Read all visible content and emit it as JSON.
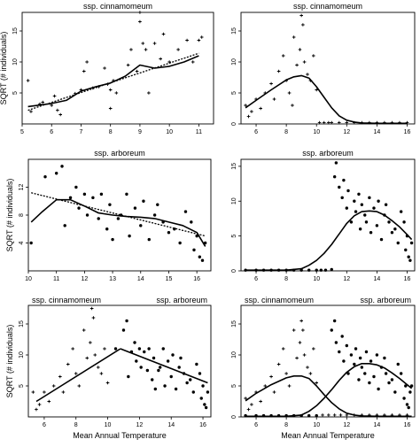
{
  "figure": {
    "xlabel_shared": "Mean Annual Temperature",
    "ylabel_shared": "SQRT (# individuals)"
  },
  "chart_data": [
    {
      "type": "scatter",
      "title": "ssp. cinnamomeum",
      "ylabel": "SQRT (# individuals)",
      "xlabel": "",
      "xlim": [
        5,
        11.5
      ],
      "ylim": [
        0,
        18
      ],
      "xticks": [
        "5",
        "6",
        "7",
        "8",
        "9",
        "10",
        "11"
      ],
      "yticks": [
        "5",
        "10",
        "15"
      ],
      "series": [
        {
          "kind": "points",
          "marker": "plus",
          "x": [
            5.2,
            5.3,
            5.6,
            5.7,
            6.0,
            6.1,
            6.2,
            6.3,
            6.8,
            7.0,
            7.1,
            7.2,
            7.4,
            7.6,
            7.8,
            7.9,
            8.0,
            8.0,
            8.1,
            8.2,
            8.6,
            8.7,
            8.9,
            9.0,
            9.0,
            9.1,
            9.2,
            9.3,
            9.5,
            9.7,
            9.8,
            10.0,
            10.3,
            10.6,
            10.8,
            11.0,
            11.1
          ],
          "y": [
            7.0,
            2.0,
            3.2,
            3.5,
            3.0,
            4.5,
            2.2,
            1.5,
            4.9,
            5.5,
            8.5,
            10.0,
            5.8,
            6.0,
            9.0,
            6.4,
            2.5,
            5.5,
            7.0,
            5.0,
            9.5,
            12.0,
            8.5,
            16.5,
            18.0,
            13.0,
            12.0,
            5.0,
            13.0,
            10.5,
            14.5,
            10.0,
            12.0,
            13.5,
            10.0,
            13.5,
            14.0
          ]
        },
        {
          "kind": "line",
          "style": "solid",
          "x": [
            5.2,
            6.0,
            6.5,
            7.0,
            7.5,
            8.0,
            8.5,
            9.0,
            9.5,
            10.0,
            10.5,
            11.0
          ],
          "y": [
            2.8,
            3.3,
            3.8,
            5.3,
            6.0,
            6.6,
            7.7,
            9.5,
            9.0,
            9.3,
            10.0,
            11.0
          ]
        },
        {
          "kind": "line",
          "style": "dotted",
          "x": [
            5.2,
            11.0
          ],
          "y": [
            2.2,
            11.4
          ]
        }
      ]
    },
    {
      "type": "scatter",
      "title": "ssp. cinnamomeum",
      "xlabel": "",
      "ylabel": "",
      "xlim": [
        5,
        16.5
      ],
      "ylim": [
        0,
        18
      ],
      "xticks": [
        "6",
        "8",
        "10",
        "12",
        "14",
        "16"
      ],
      "yticks": [
        "0",
        "5",
        "10",
        "15"
      ],
      "series": [
        {
          "kind": "points",
          "marker": "plus",
          "x": [
            5.3,
            5.5,
            5.7,
            6.0,
            6.3,
            6.6,
            7.0,
            7.2,
            7.5,
            7.8,
            8.0,
            8.2,
            8.4,
            8.5,
            8.7,
            8.9,
            9.0,
            9.1,
            9.2,
            9.4,
            9.6,
            9.8,
            10.0,
            10.2,
            10.5,
            10.8,
            11.0,
            11.5,
            12.0,
            12.5,
            13.0,
            13.5,
            14.0,
            14.5,
            15.0,
            15.5,
            16.0
          ],
          "y": [
            3.0,
            1.2,
            2.0,
            4.0,
            2.5,
            5.0,
            6.5,
            4.0,
            8.5,
            11.0,
            7.0,
            5.0,
            3.0,
            14.0,
            9.5,
            12.0,
            17.5,
            16.0,
            10.0,
            8.0,
            7.0,
            11.0,
            5.5,
            0.2,
            0.2,
            0.2,
            0.2,
            0.2,
            0.2,
            0.2,
            0.2,
            0.2,
            0.2,
            0.2,
            0.2,
            0.2,
            0.2
          ]
        },
        {
          "kind": "line",
          "style": "solid",
          "x": [
            5.3,
            6.0,
            7.0,
            8.0,
            8.5,
            9.0,
            9.5,
            10.0,
            10.5,
            11.0,
            11.5,
            12.0,
            12.5,
            13.0,
            14.0,
            15.0,
            16.0
          ],
          "y": [
            2.6,
            3.8,
            5.5,
            7.1,
            7.6,
            7.8,
            7.4,
            6.0,
            4.3,
            2.6,
            1.3,
            0.6,
            0.3,
            0.15,
            0.1,
            0.1,
            0.1
          ]
        }
      ]
    },
    {
      "type": "scatter",
      "title": "ssp. arboreum",
      "ylabel": "SQRT (# individuals)",
      "xlabel": "",
      "xlim": [
        10,
        16.5
      ],
      "ylim": [
        0,
        16
      ],
      "xticks": [
        "10",
        "11",
        "12",
        "13",
        "14",
        "15",
        "16"
      ],
      "yticks": [
        "4",
        "8",
        "12"
      ],
      "series": [
        {
          "kind": "points",
          "marker": "dot",
          "x": [
            10.1,
            10.6,
            11.0,
            11.2,
            11.3,
            11.5,
            11.7,
            11.8,
            12.0,
            12.1,
            12.3,
            12.5,
            12.6,
            12.8,
            12.9,
            13.0,
            13.2,
            13.3,
            13.5,
            13.6,
            13.8,
            14.0,
            14.1,
            14.3,
            14.5,
            14.6,
            14.8,
            15.0,
            15.2,
            15.4,
            15.6,
            15.8,
            15.9,
            16.0,
            16.1,
            16.2,
            16.3
          ],
          "y": [
            4.0,
            13.5,
            14.0,
            15.0,
            6.5,
            10.5,
            12.0,
            9.0,
            11.0,
            8.0,
            10.5,
            7.5,
            11.0,
            6.0,
            9.5,
            4.5,
            7.5,
            8.0,
            11.0,
            5.0,
            9.0,
            6.5,
            10.0,
            4.5,
            8.0,
            9.5,
            7.0,
            5.5,
            6.0,
            4.0,
            8.5,
            7.0,
            3.0,
            5.0,
            2.0,
            1.5,
            4.0
          ]
        },
        {
          "kind": "line",
          "style": "solid",
          "x": [
            10.1,
            10.5,
            11.0,
            11.5,
            12.0,
            12.5,
            13.0,
            13.5,
            14.0,
            14.5,
            15.0,
            15.5,
            16.0,
            16.3
          ],
          "y": [
            7.0,
            8.5,
            10.2,
            10.2,
            9.3,
            8.3,
            8.0,
            7.8,
            7.7,
            7.5,
            7.0,
            6.5,
            5.5,
            3.5
          ]
        },
        {
          "kind": "line",
          "style": "dotted",
          "x": [
            10.1,
            16.3
          ],
          "y": [
            11.2,
            5.0
          ]
        }
      ]
    },
    {
      "type": "scatter",
      "title": "ssp. arboreum",
      "xlabel": "",
      "ylabel": "",
      "xlim": [
        5,
        16.5
      ],
      "ylim": [
        0,
        16
      ],
      "xticks": [
        "6",
        "8",
        "10",
        "12",
        "14",
        "16"
      ],
      "yticks": [
        "0",
        "5",
        "10",
        "15"
      ],
      "series": [
        {
          "kind": "points",
          "marker": "dot",
          "x": [
            5.3,
            6.0,
            6.5,
            7.0,
            7.5,
            8.0,
            8.5,
            9.0,
            9.5,
            10.0,
            10.3,
            10.6,
            11.0,
            11.2,
            11.3,
            11.5,
            11.7,
            11.8,
            12.0,
            12.1,
            12.3,
            12.5,
            12.6,
            12.8,
            12.9,
            13.0,
            13.2,
            13.3,
            13.5,
            13.6,
            13.8,
            14.0,
            14.1,
            14.3,
            14.5,
            14.6,
            14.8,
            15.0,
            15.2,
            15.4,
            15.6,
            15.8,
            15.9,
            16.0,
            16.1,
            16.2,
            16.3
          ],
          "y": [
            0.1,
            0.1,
            0.1,
            0.1,
            0.1,
            0.1,
            0.1,
            0.1,
            0.1,
            0.1,
            0.1,
            0.1,
            0.2,
            13.5,
            15.5,
            12.0,
            10.5,
            13.0,
            9.0,
            11.5,
            7.0,
            10.0,
            8.5,
            11.0,
            6.0,
            9.5,
            8.0,
            7.0,
            10.5,
            5.5,
            9.0,
            6.5,
            10.0,
            4.5,
            8.0,
            9.5,
            7.0,
            5.5,
            6.0,
            4.0,
            8.5,
            7.0,
            3.0,
            5.0,
            2.0,
            1.5,
            4.0
          ]
        },
        {
          "kind": "line",
          "style": "solid",
          "x": [
            5.3,
            8.0,
            9.0,
            9.5,
            10.0,
            10.5,
            11.0,
            11.5,
            12.0,
            12.5,
            13.0,
            13.5,
            14.0,
            14.5,
            15.0,
            15.5,
            16.0,
            16.3
          ],
          "y": [
            0.1,
            0.1,
            0.3,
            0.8,
            1.5,
            2.5,
            3.8,
            5.3,
            6.8,
            7.9,
            8.5,
            8.6,
            8.5,
            8.0,
            7.2,
            6.3,
            5.2,
            4.5
          ]
        }
      ]
    },
    {
      "type": "scatter",
      "title": "ssp. cinnamomeum",
      "title_right": "ssp. arboreum",
      "ylabel": "SQRT (# individuals)",
      "xlabel": "Mean Annual Temperature",
      "xlim": [
        5,
        16.5
      ],
      "ylim": [
        0,
        18
      ],
      "xticks": [
        "6",
        "8",
        "10",
        "12",
        "14",
        "16"
      ],
      "yticks": [
        "5",
        "10",
        "15"
      ],
      "series": [
        {
          "kind": "points",
          "marker": "plus",
          "x": [
            5.3,
            5.5,
            5.7,
            6.0,
            6.3,
            6.6,
            7.0,
            7.2,
            7.5,
            7.8,
            8.0,
            8.2,
            8.5,
            8.7,
            8.9,
            9.0,
            9.1,
            9.2,
            9.4,
            9.6,
            9.8,
            10.0
          ],
          "y": [
            4.0,
            1.2,
            2.0,
            4.0,
            2.5,
            5.0,
            6.5,
            4.0,
            8.5,
            11.0,
            7.0,
            5.0,
            14.0,
            9.5,
            12.0,
            17.5,
            16.0,
            10.0,
            8.0,
            7.0,
            11.0,
            5.5
          ]
        },
        {
          "kind": "points",
          "marker": "dot",
          "x": [
            10.5,
            11.0,
            11.2,
            11.3,
            11.5,
            11.7,
            11.8,
            12.0,
            12.1,
            12.3,
            12.5,
            12.6,
            12.8,
            12.9,
            13.0,
            13.2,
            13.3,
            13.5,
            13.6,
            13.8,
            14.0,
            14.1,
            14.3,
            14.5,
            14.6,
            14.8,
            15.0,
            15.2,
            15.4,
            15.6,
            15.8,
            15.9,
            16.0,
            16.1,
            16.2,
            16.3
          ],
          "y": [
            11.0,
            14.0,
            15.5,
            6.5,
            10.5,
            12.0,
            9.0,
            11.0,
            8.0,
            10.5,
            7.5,
            11.0,
            6.0,
            9.5,
            4.5,
            7.5,
            8.0,
            11.0,
            5.0,
            9.0,
            6.5,
            10.0,
            4.5,
            8.0,
            9.5,
            7.0,
            5.5,
            6.0,
            4.0,
            8.5,
            7.0,
            3.0,
            5.0,
            2.0,
            1.5,
            4.0
          ]
        },
        {
          "kind": "line",
          "style": "solid",
          "x": [
            5.5,
            10.8
          ],
          "y": [
            2.5,
            11.0
          ]
        },
        {
          "kind": "line",
          "style": "solid",
          "x": [
            10.8,
            16.3
          ],
          "y": [
            11.0,
            5.5
          ]
        }
      ]
    },
    {
      "type": "scatter",
      "title": "ssp. cinnamomeum",
      "title_right": "ssp. arboreum",
      "xlabel": "Mean Annual Temperature",
      "ylabel": "",
      "xlim": [
        5,
        16.5
      ],
      "ylim": [
        0,
        18
      ],
      "xticks": [
        "6",
        "8",
        "10",
        "12",
        "14",
        "16"
      ],
      "yticks": [
        "0",
        "5",
        "10",
        "15"
      ],
      "series": [
        {
          "kind": "points",
          "marker": "plus",
          "x": [
            5.3,
            5.5,
            5.7,
            6.0,
            6.3,
            6.6,
            7.0,
            7.2,
            7.5,
            7.8,
            8.0,
            8.2,
            8.5,
            8.7,
            8.9,
            9.0,
            9.1,
            9.2,
            9.4,
            9.6,
            9.8,
            10.0,
            10.4,
            10.8,
            11.2,
            11.6,
            12.0,
            12.5,
            13.0,
            13.5,
            14.0,
            14.5,
            15.0,
            15.5,
            16.0
          ],
          "y": [
            3.0,
            1.2,
            2.0,
            4.0,
            2.5,
            5.0,
            6.5,
            4.0,
            8.5,
            11.0,
            7.0,
            5.0,
            14.0,
            9.5,
            12.0,
            15.5,
            14.0,
            10.0,
            8.0,
            7.0,
            11.0,
            5.5,
            0.3,
            0.3,
            0.3,
            0.3,
            0.3,
            0.3,
            0.3,
            0.3,
            0.3,
            0.3,
            0.3,
            0.3,
            0.3
          ]
        },
        {
          "kind": "points",
          "marker": "dot",
          "x": [
            5.3,
            6.0,
            6.5,
            7.0,
            7.5,
            8.0,
            8.5,
            9.0,
            9.5,
            10.0,
            11.0,
            11.2,
            11.3,
            11.5,
            11.7,
            11.8,
            12.0,
            12.1,
            12.3,
            12.5,
            12.6,
            12.8,
            12.9,
            13.0,
            13.2,
            13.3,
            13.5,
            13.6,
            13.8,
            14.0,
            14.1,
            14.3,
            14.5,
            14.6,
            14.8,
            15.0,
            15.2,
            15.4,
            15.6,
            15.8,
            15.9,
            16.0,
            16.1,
            16.2,
            16.3
          ],
          "y": [
            0.2,
            0.2,
            0.2,
            0.2,
            0.2,
            0.2,
            0.2,
            0.2,
            0.2,
            0.2,
            14.0,
            15.5,
            12.0,
            10.5,
            13.0,
            9.0,
            11.5,
            7.0,
            10.0,
            8.5,
            11.0,
            6.0,
            9.5,
            8.0,
            7.0,
            10.5,
            5.5,
            9.0,
            6.5,
            10.0,
            4.5,
            8.0,
            9.5,
            7.0,
            5.5,
            6.0,
            4.0,
            8.5,
            7.0,
            3.0,
            5.0,
            2.0,
            1.5,
            4.0,
            5.0
          ]
        },
        {
          "kind": "line",
          "style": "solid",
          "x": [
            5.3,
            6.0,
            7.0,
            8.0,
            8.5,
            9.0,
            9.5,
            10.0,
            10.5,
            11.0,
            11.5,
            12.0,
            12.5,
            13.0,
            14.0,
            15.0,
            16.0,
            16.3
          ],
          "y": [
            2.6,
            3.8,
            5.2,
            6.3,
            6.6,
            6.6,
            6.2,
            5.0,
            3.6,
            2.3,
            1.3,
            0.6,
            0.3,
            0.15,
            0.1,
            0.1,
            0.1,
            0.1
          ]
        },
        {
          "kind": "line",
          "style": "solid",
          "x": [
            5.3,
            8.0,
            9.0,
            9.5,
            10.0,
            10.5,
            11.0,
            11.5,
            12.0,
            12.5,
            13.0,
            13.5,
            14.0,
            14.5,
            15.0,
            15.5,
            16.0,
            16.3
          ],
          "y": [
            0.1,
            0.1,
            0.3,
            0.9,
            1.8,
            3.0,
            4.4,
            5.9,
            7.2,
            8.1,
            8.6,
            8.6,
            8.4,
            7.9,
            7.1,
            6.2,
            5.2,
            4.6
          ]
        }
      ]
    }
  ]
}
